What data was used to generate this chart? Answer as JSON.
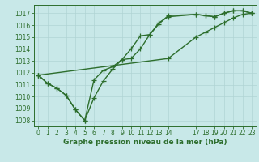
{
  "xlabel": "Graphe pression niveau de la mer (hPa)",
  "bg_color": "#c8e8e8",
  "grid_color": "#b0d4d4",
  "line_color": "#2d6e2d",
  "ylim": [
    1007.5,
    1017.7
  ],
  "xlim": [
    -0.5,
    23.5
  ],
  "yticks": [
    1008,
    1009,
    1010,
    1011,
    1012,
    1013,
    1014,
    1015,
    1016,
    1017
  ],
  "xticks": [
    0,
    1,
    2,
    3,
    4,
    5,
    6,
    7,
    8,
    9,
    10,
    11,
    12,
    13,
    14,
    17,
    18,
    19,
    20,
    21,
    22,
    23
  ],
  "series1_x": [
    0,
    1,
    2,
    3,
    4,
    5,
    6,
    7,
    8,
    9,
    10,
    11,
    12,
    13,
    14,
    17,
    18,
    19,
    20,
    21,
    22,
    23
  ],
  "series1_y": [
    1011.8,
    1011.1,
    1010.7,
    1010.1,
    1008.9,
    1008.0,
    1011.4,
    1012.2,
    1012.5,
    1013.1,
    1013.2,
    1014.0,
    1015.2,
    1016.1,
    1016.8,
    1016.9,
    1016.8,
    1016.7,
    1017.0,
    1017.2,
    1017.2,
    1017.0
  ],
  "series2_x": [
    0,
    1,
    2,
    3,
    4,
    5,
    6,
    7,
    8,
    9,
    10,
    11,
    12,
    13,
    14,
    17,
    18,
    19,
    20,
    21,
    22,
    23
  ],
  "series2_y": [
    1011.8,
    1011.1,
    1010.7,
    1010.1,
    1008.9,
    1008.0,
    1009.9,
    1011.3,
    1012.3,
    1013.1,
    1014.0,
    1015.1,
    1015.2,
    1016.2,
    1016.7,
    1016.9,
    1016.8,
    1016.7,
    1017.0,
    1017.2,
    1017.2,
    1017.0
  ],
  "series3_x": [
    0,
    14,
    17,
    18,
    19,
    20,
    21,
    22,
    23
  ],
  "series3_y": [
    1011.8,
    1013.2,
    1015.0,
    1015.4,
    1015.8,
    1016.2,
    1016.6,
    1016.9,
    1017.0
  ],
  "marker_size": 4,
  "line_width": 1.0,
  "tick_fontsize": 5.5,
  "label_fontsize": 6.5
}
